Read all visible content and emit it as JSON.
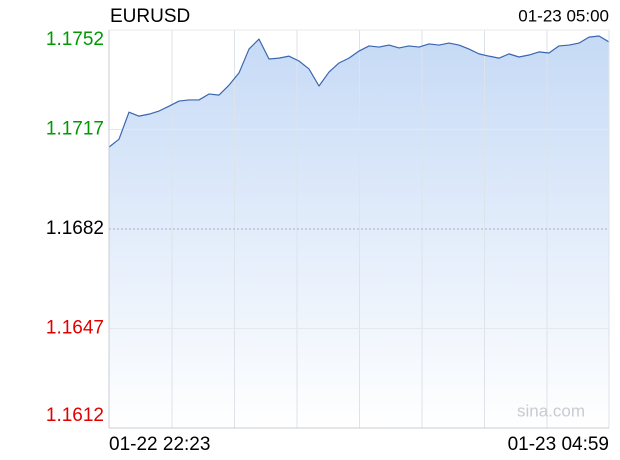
{
  "chart_data": {
    "type": "line",
    "title": "EURUSD",
    "timestamp": "01-23 05:00",
    "watermark": "sina.com",
    "categories": [
      "01-22 22:23",
      null,
      null,
      null,
      null,
      null,
      null,
      null,
      null,
      null,
      null,
      null,
      null,
      null,
      null,
      null,
      null,
      null,
      null,
      null,
      null,
      null,
      null,
      null,
      null,
      null,
      null,
      null,
      null,
      null,
      null,
      null,
      null,
      null,
      null,
      null,
      null,
      null,
      null,
      null,
      null,
      null,
      null,
      null,
      null,
      null,
      null,
      null,
      null,
      null,
      "01-23 04:59"
    ],
    "values": [
      1.17108,
      1.17136,
      1.17231,
      1.17217,
      1.17224,
      1.17235,
      1.17252,
      1.1727,
      1.17274,
      1.17274,
      1.17295,
      1.17291,
      1.17326,
      1.17369,
      1.17453,
      1.17488,
      1.17418,
      1.17421,
      1.17428,
      1.17411,
      1.17383,
      1.17323,
      1.17372,
      1.17404,
      1.17421,
      1.17446,
      1.17464,
      1.1746,
      1.17467,
      1.17457,
      1.17464,
      1.1746,
      1.17471,
      1.17467,
      1.17474,
      1.17467,
      1.17453,
      1.17436,
      1.17428,
      1.17421,
      1.17436,
      1.17425,
      1.17432,
      1.17443,
      1.17439,
      1.17464,
      1.17467,
      1.17474,
      1.17495,
      1.17499,
      1.17478
    ],
    "color": "#3a66b0",
    "ylim": [
      1.1612,
      1.1752
    ],
    "yticks": [
      1.1612,
      1.1647,
      1.1682,
      1.1717,
      1.1752
    ],
    "ytick_colors": [
      "#e00000",
      "#e00000",
      "#000000",
      "#009900",
      "#009900"
    ],
    "grid": true
  }
}
